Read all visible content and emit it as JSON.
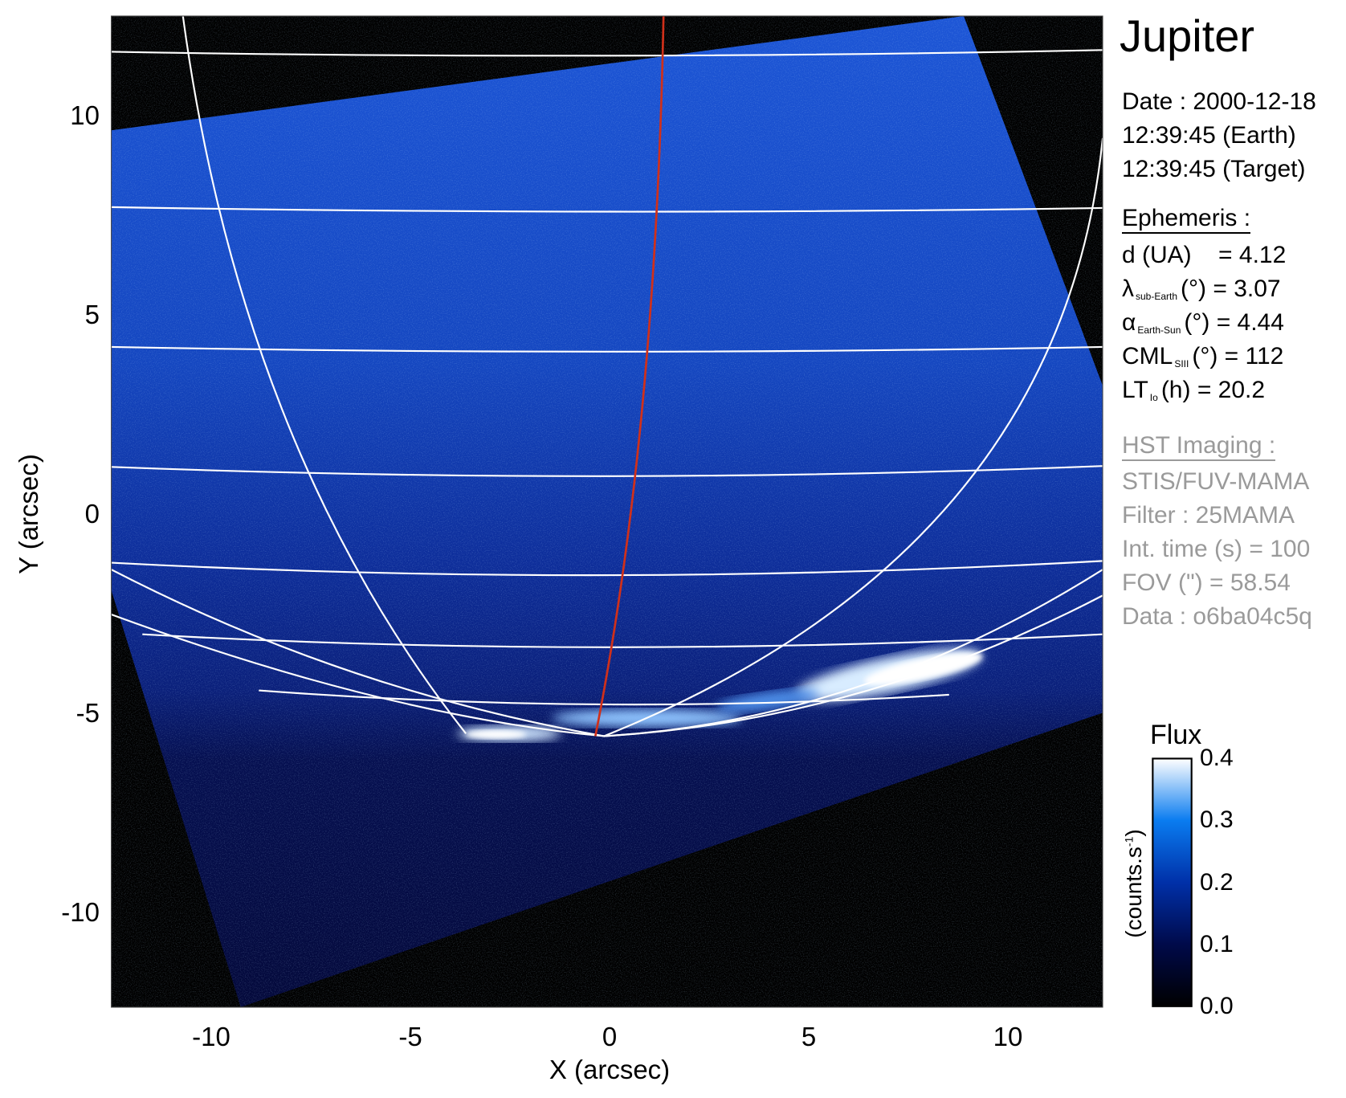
{
  "chart_data": {
    "type": "heatmap",
    "title": "Jupiter",
    "xlabel": "X (arcsec)",
    "ylabel": "Y (arcsec)",
    "xlim": [
      -12.5,
      12.4
    ],
    "ylim": [
      -12.4,
      12.5
    ],
    "xticks": [
      -10,
      -5,
      0,
      5,
      10
    ],
    "yticks": [
      10,
      5,
      0,
      -5,
      -10
    ],
    "xtick_labels": [
      "-10",
      "-5",
      "0",
      "5",
      "10"
    ],
    "ytick_labels": [
      "10",
      "5",
      "0",
      "-5",
      "-10"
    ],
    "grid": "planetographic latitude/longitude grid (white)",
    "colorbar": {
      "title": "Flux",
      "label": "(counts.s",
      "label_sup": "-1",
      "label_close": ")",
      "range": [
        0.0,
        0.4
      ],
      "ticks": [
        0.4,
        0.3,
        0.2,
        0.1,
        0.0
      ],
      "tick_labels": [
        "0.4",
        "0.3",
        "0.2",
        "0.1",
        "0.0"
      ],
      "colors": [
        "#000000",
        "#000a4a",
        "#0030a8",
        "#0a7cf0",
        "#ffffff"
      ]
    },
    "line_colors": {
      "grid": "#ffffff",
      "io_footprint": "#d0301a"
    }
  },
  "info": {
    "target": "Jupiter",
    "date_line": "Date : 2000-12-18",
    "earth_time": "12:39:45 (Earth)",
    "target_time": "12:39:45 (Target)",
    "ephemeris_header": "Ephemeris :",
    "ephemeris": [
      {
        "symbol": "d (UA)",
        "sub": "",
        "rest": "    = 4.12"
      },
      {
        "symbol": "λ",
        "sub": "sub-Earth",
        "rest": "(°) = 3.07"
      },
      {
        "symbol": "α",
        "sub": "Earth-Sun",
        "rest": "(°) = 4.44"
      },
      {
        "symbol": "CML",
        "sub": "SIII",
        "rest": "(°) = 112"
      },
      {
        "symbol": "LT",
        "sub": "Io",
        "rest": "(h) = 20.2"
      }
    ],
    "imaging_header": "HST Imaging :",
    "imaging": [
      "STIS/FUV-MAMA",
      "Filter : 25MAMA",
      "Int. time (s) = 100",
      "FOV (\") = 58.54",
      "Data : o6ba04c5q"
    ]
  }
}
